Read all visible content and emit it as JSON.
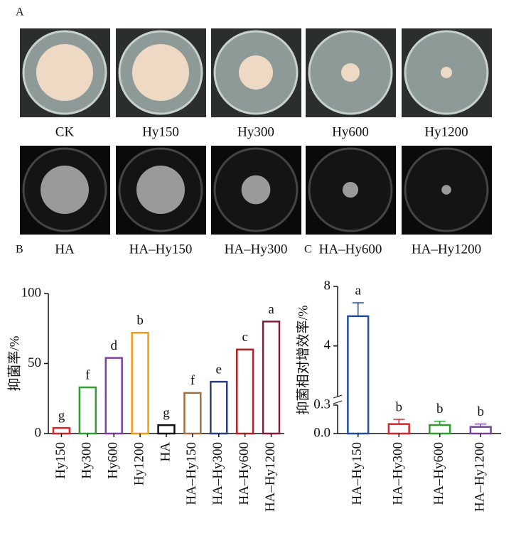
{
  "panel_a": {
    "label": "A",
    "row1": [
      "CK",
      "Hy150",
      "Hy300",
      "Hy600",
      "Hy1200"
    ],
    "row2": [
      "HA",
      "HA–Hy150",
      "HA–Hy300",
      "HA–Hy600",
      "HA–Hy1200"
    ]
  },
  "chart_data": [
    {
      "type": "bar",
      "panel_label": "B",
      "ylabel": "抑菌率/%",
      "categories": [
        "Hy150",
        "Hy300",
        "Hy600",
        "Hy1200",
        "HA",
        "HA–Hy150",
        "HA–Hy300",
        "HA–Hy600",
        "HA–Hy1200"
      ],
      "values": [
        4,
        33,
        54,
        72,
        6,
        29,
        37,
        60,
        80
      ],
      "colors": [
        "#d62728",
        "#2ca02c",
        "#7b3fa0",
        "#f39c12",
        "#111111",
        "#a07040",
        "#2c3e7a",
        "#b22222",
        "#8b1a3a"
      ],
      "annotations": [
        "g",
        "f",
        "d",
        "b",
        "g",
        "f",
        "e",
        "c",
        "a"
      ],
      "ylim": [
        0,
        100
      ],
      "yticks": [
        0,
        50,
        100
      ]
    },
    {
      "type": "bar",
      "panel_label": "C",
      "ylabel": "抑菌相对增效率/%",
      "categories": [
        "HA–Hy150",
        "HA–Hy300",
        "HA–Hy600",
        "HA–Hy1200"
      ],
      "values": [
        6.0,
        0.1,
        0.09,
        0.07
      ],
      "errors": [
        0.9,
        0.05,
        0.04,
        0.03
      ],
      "colors": [
        "#1f4e9c",
        "#d62728",
        "#2ca02c",
        "#7b3fa0"
      ],
      "annotations": [
        "a",
        "b",
        "b",
        "b"
      ],
      "ylim": [
        0,
        8
      ],
      "ybreak": [
        0.3,
        0.6
      ],
      "yticks": [
        {
          "value": 0,
          "label": "0.0"
        },
        0.3,
        4,
        8
      ]
    }
  ]
}
